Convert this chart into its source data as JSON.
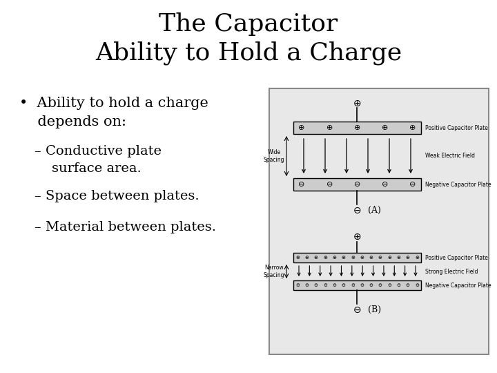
{
  "title_line1": "The Capacitor",
  "title_line2": "Ability to Hold a Charge",
  "title_fontsize": 26,
  "title_fontfamily": "DejaVu Serif",
  "bullet_text": "Ability to hold a charge\ndepends on:",
  "sub_items": [
    "– Conductive plate\n    surface area.",
    "– Space between plates.",
    "– Material between plates."
  ],
  "text_fontsize": 15,
  "sub_fontsize": 14,
  "background_color": "#ffffff",
  "text_color": "#000000",
  "diagram_facecolor": "#e8e8e8"
}
